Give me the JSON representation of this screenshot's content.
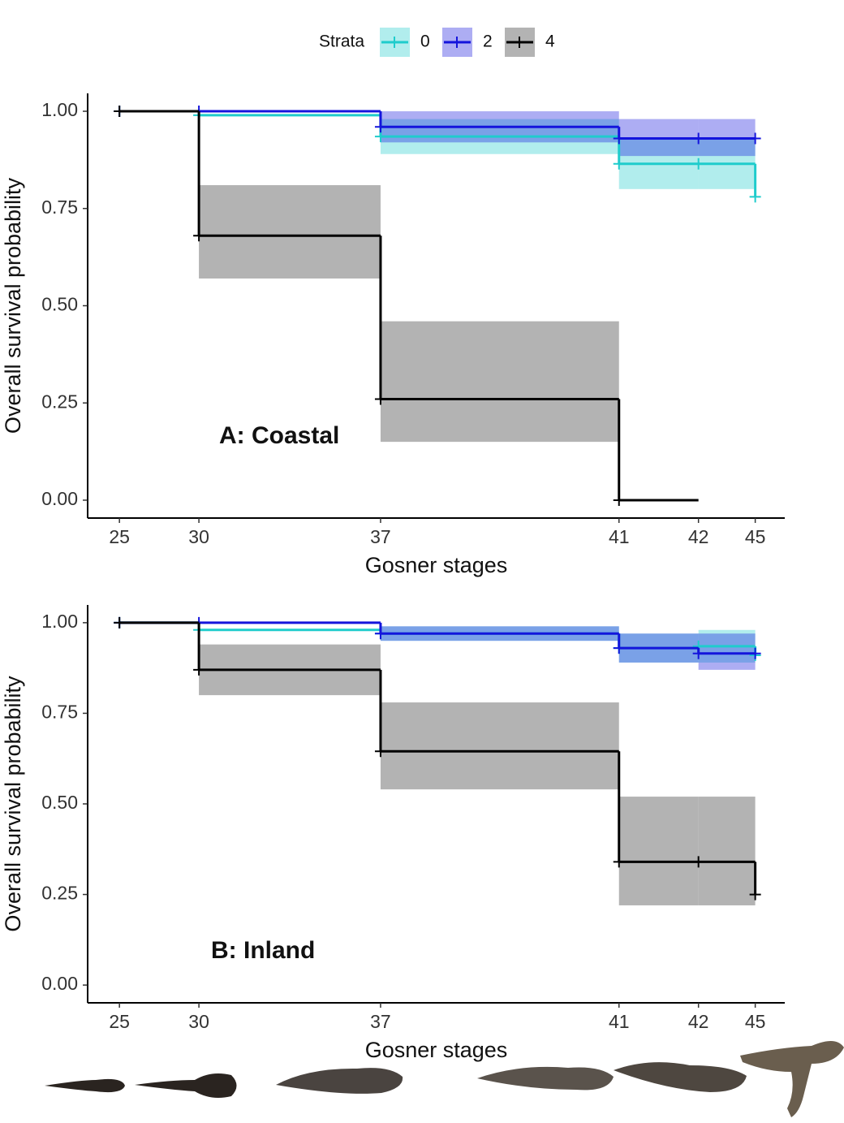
{
  "chart_data": [
    {
      "type": "step",
      "title": "A: Coastal",
      "xlabel": "Gosner stages",
      "ylabel": "Overall survival probability",
      "legend_title": "Strata",
      "x": [
        0,
        7,
        23,
        44,
        51,
        56
      ],
      "xlim": [
        -2.8,
        58.6
      ],
      "xticks": [
        {
          "value": 0,
          "label": "25"
        },
        {
          "value": 7,
          "label": "30"
        },
        {
          "value": 23,
          "label": "37"
        },
        {
          "value": 44,
          "label": "41"
        },
        {
          "value": 51,
          "label": "42"
        },
        {
          "value": 56,
          "label": "45"
        }
      ],
      "ylim": [
        -0.046,
        1.046
      ],
      "yticks": [
        {
          "value": 0,
          "label": "0.00"
        },
        {
          "value": 0.25,
          "label": "0.25"
        },
        {
          "value": 0.5,
          "label": "0.50"
        },
        {
          "value": 0.75,
          "label": "0.75"
        },
        {
          "value": 1,
          "label": "1.00"
        }
      ],
      "series": [
        {
          "name": "0",
          "color": "#1fcccc",
          "values": [
            1,
            0.99,
            0.935,
            0.865,
            0.865,
            0.78
          ],
          "lower": [
            null,
            null,
            0.89,
            0.8,
            0.8,
            null
          ],
          "upper": [
            null,
            null,
            0.98,
            0.93,
            0.93,
            null
          ]
        },
        {
          "name": "2",
          "color": "#1414dc",
          "values": [
            1,
            1,
            0.96,
            0.93,
            0.93,
            0.93
          ],
          "lower": [
            null,
            null,
            0.92,
            0.885,
            0.885,
            null
          ],
          "upper": [
            null,
            null,
            1,
            0.98,
            0.98,
            null
          ]
        },
        {
          "name": "4",
          "color": "#000000",
          "values": [
            1,
            0.68,
            0.26,
            0,
            null,
            null
          ],
          "lower": [
            null,
            0.57,
            0.15,
            null,
            null,
            null
          ],
          "upper": [
            null,
            0.81,
            0.46,
            null,
            null,
            null
          ]
        }
      ]
    },
    {
      "type": "step",
      "title": "B: Inland",
      "xlabel": "Gosner stages",
      "ylabel": "Overall survival probability",
      "x": [
        0,
        7,
        23,
        44,
        51,
        56
      ],
      "xlim": [
        -2.8,
        58.6
      ],
      "xticks": [
        {
          "value": 0,
          "label": "25"
        },
        {
          "value": 7,
          "label": "30"
        },
        {
          "value": 23,
          "label": "37"
        },
        {
          "value": 44,
          "label": "41"
        },
        {
          "value": 51,
          "label": "42"
        },
        {
          "value": 56,
          "label": "45"
        }
      ],
      "ylim": [
        -0.049,
        1.049
      ],
      "yticks": [
        {
          "value": 0,
          "label": "0.00"
        },
        {
          "value": 0.25,
          "label": "0.25"
        },
        {
          "value": 0.5,
          "label": "0.50"
        },
        {
          "value": 0.75,
          "label": "0.75"
        },
        {
          "value": 1,
          "label": "1.00"
        }
      ],
      "series": [
        {
          "color": "#1fcccc",
          "values": [
            1,
            0.98,
            0.97,
            0.93,
            0.935,
            0.91
          ],
          "lower": [
            null,
            null,
            0.95,
            0.89,
            0.89,
            null
          ],
          "upper": [
            null,
            null,
            0.99,
            0.97,
            0.98,
            null
          ]
        },
        {
          "color": "#1414dc",
          "values": [
            1,
            1,
            0.97,
            0.93,
            0.915,
            0.915
          ],
          "lower": [
            null,
            null,
            0.95,
            0.89,
            0.87,
            null
          ],
          "upper": [
            null,
            null,
            0.99,
            0.97,
            0.97,
            null
          ]
        },
        {
          "color": "#000000",
          "values": [
            1,
            0.87,
            0.645,
            0.34,
            0.34,
            0.25
          ],
          "lower": [
            null,
            0.8,
            0.54,
            0.22,
            0.22,
            null
          ],
          "upper": [
            null,
            0.94,
            0.78,
            0.52,
            0.52,
            null
          ]
        }
      ]
    }
  ]
}
